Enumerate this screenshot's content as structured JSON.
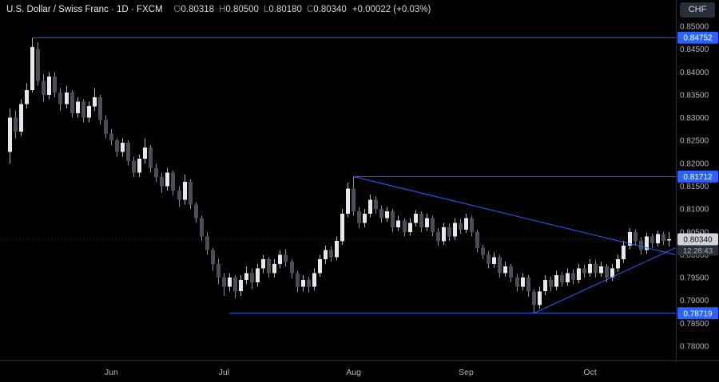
{
  "header": {
    "symbol_title": "U.S. Dollar / Swiss Franc · 1D · FXCM",
    "ohlc": {
      "o_label": "O",
      "o": "0.80318",
      "h_label": "H",
      "h": "0.80500",
      "l_label": "L",
      "l": "0.80180",
      "c_label": "C",
      "c": "0.80340",
      "change": "+0.00022 (+0.03%)"
    },
    "currency_button": "CHF"
  },
  "price_axis": {
    "min": 0.78,
    "max": 0.85,
    "ticks": [
      "0.85000",
      "0.84500",
      "0.84000",
      "0.83500",
      "0.83000",
      "0.82500",
      "0.82000",
      "0.81500",
      "0.81000",
      "0.80500",
      "0.80000",
      "0.79500",
      "0.79000",
      "0.78500",
      "0.78000"
    ]
  },
  "time_axis": {
    "labels": [
      {
        "text": "Jun",
        "index": 18
      },
      {
        "text": "Jul",
        "index": 38
      },
      {
        "text": "Aug",
        "index": 61
      },
      {
        "text": "Sep",
        "index": 81
      },
      {
        "text": "Oct",
        "index": 103
      }
    ]
  },
  "last_price": {
    "value": "0.80340",
    "countdown": "12:28:43",
    "price": 0.8034
  },
  "levels": [
    {
      "price": 0.84752,
      "label": "0.84752",
      "from_index": 4
    },
    {
      "price": 0.81712,
      "label": "0.81712",
      "from_index": 61
    },
    {
      "price": 0.78719,
      "label": "0.78719",
      "from_index": 39
    }
  ],
  "trendlines": [
    {
      "x1_index": 61,
      "p1": 0.81712,
      "x2_index": 118.5,
      "p2": 0.8
    },
    {
      "x1_index": 93,
      "p1": 0.78719,
      "x2_index": 118.5,
      "p2": 0.8015
    }
  ],
  "colors": {
    "background": "#000000",
    "accent": "#2962ff",
    "badge_text": "#ffffff",
    "up": "#e6e8ea",
    "down": "#4a4e57",
    "up_wick": "#b4b6ba",
    "down_wick": "#8c8f96",
    "axis_text": "#b2b5be",
    "separator": "#2a2e39",
    "last_badge_bg": "#d2d4d8",
    "last_badge_text": "#0b0b0b",
    "countdown_bg": "#2a2e39",
    "countdown_text": "#b2b5be",
    "last_price_line": "#9598a1"
  },
  "chart_data": {
    "type": "candlestick",
    "title": "U.S. Dollar / Swiss Franc",
    "symbol": "USDCHF",
    "interval": "1D",
    "exchange": "FXCM",
    "y_range": [
      0.78,
      0.85
    ],
    "x_axis_months": [
      "Jun",
      "Jul",
      "Aug",
      "Sep",
      "Oct"
    ],
    "marked_levels": [
      0.84752,
      0.81712,
      0.78719
    ],
    "candles": [
      [
        0.8225,
        0.832,
        0.82,
        0.83
      ],
      [
        0.83,
        0.8315,
        0.8255,
        0.827
      ],
      [
        0.827,
        0.834,
        0.826,
        0.833
      ],
      [
        0.833,
        0.8375,
        0.832,
        0.836
      ],
      [
        0.836,
        0.8475,
        0.8355,
        0.8455
      ],
      [
        0.845,
        0.8465,
        0.837,
        0.838
      ],
      [
        0.838,
        0.8395,
        0.8335,
        0.835
      ],
      [
        0.835,
        0.84,
        0.834,
        0.839
      ],
      [
        0.839,
        0.84,
        0.8345,
        0.8355
      ],
      [
        0.8355,
        0.8365,
        0.8315,
        0.833
      ],
      [
        0.833,
        0.837,
        0.832,
        0.8355
      ],
      [
        0.8355,
        0.836,
        0.83,
        0.831
      ],
      [
        0.831,
        0.8345,
        0.83,
        0.8335
      ],
      [
        0.8335,
        0.834,
        0.829,
        0.83
      ],
      [
        0.83,
        0.8335,
        0.829,
        0.8325
      ],
      [
        0.8325,
        0.8365,
        0.8315,
        0.8345
      ],
      [
        0.8345,
        0.835,
        0.8285,
        0.8295
      ],
      [
        0.8295,
        0.8305,
        0.8255,
        0.8265
      ],
      [
        0.8265,
        0.8275,
        0.824,
        0.825
      ],
      [
        0.825,
        0.8255,
        0.8215,
        0.8225
      ],
      [
        0.8225,
        0.8255,
        0.8215,
        0.8245
      ],
      [
        0.8245,
        0.825,
        0.8195,
        0.8205
      ],
      [
        0.8205,
        0.8215,
        0.817,
        0.818
      ],
      [
        0.818,
        0.822,
        0.817,
        0.821
      ],
      [
        0.821,
        0.8255,
        0.82,
        0.8235
      ],
      [
        0.8235,
        0.824,
        0.818,
        0.819
      ],
      [
        0.819,
        0.82,
        0.816,
        0.817
      ],
      [
        0.817,
        0.818,
        0.8135,
        0.815
      ],
      [
        0.815,
        0.819,
        0.814,
        0.818
      ],
      [
        0.818,
        0.8185,
        0.813,
        0.814
      ],
      [
        0.814,
        0.815,
        0.8105,
        0.812
      ],
      [
        0.812,
        0.8175,
        0.811,
        0.816
      ],
      [
        0.816,
        0.8165,
        0.81,
        0.811
      ],
      [
        0.811,
        0.8115,
        0.807,
        0.808
      ],
      [
        0.808,
        0.8085,
        0.803,
        0.804
      ],
      [
        0.804,
        0.805,
        0.8,
        0.801
      ],
      [
        0.801,
        0.8015,
        0.7965,
        0.798
      ],
      [
        0.798,
        0.799,
        0.7935,
        0.795
      ],
      [
        0.795,
        0.796,
        0.791,
        0.793
      ],
      [
        0.793,
        0.796,
        0.792,
        0.795
      ],
      [
        0.795,
        0.7955,
        0.7905,
        0.792
      ],
      [
        0.792,
        0.7955,
        0.791,
        0.7945
      ],
      [
        0.7945,
        0.7975,
        0.7935,
        0.796
      ],
      [
        0.796,
        0.797,
        0.7925,
        0.794
      ],
      [
        0.794,
        0.798,
        0.793,
        0.797
      ],
      [
        0.797,
        0.8,
        0.796,
        0.799
      ],
      [
        0.799,
        0.7995,
        0.795,
        0.796
      ],
      [
        0.796,
        0.799,
        0.795,
        0.798
      ],
      [
        0.798,
        0.801,
        0.797,
        0.8
      ],
      [
        0.8,
        0.8012,
        0.7975,
        0.7985
      ],
      [
        0.7985,
        0.799,
        0.7948,
        0.796
      ],
      [
        0.796,
        0.7965,
        0.7918,
        0.793
      ],
      [
        0.793,
        0.7955,
        0.792,
        0.7945
      ],
      [
        0.7945,
        0.7952,
        0.7918,
        0.793
      ],
      [
        0.793,
        0.797,
        0.7922,
        0.796
      ],
      [
        0.796,
        0.8,
        0.7952,
        0.799
      ],
      [
        0.799,
        0.802,
        0.798,
        0.801
      ],
      [
        0.801,
        0.8018,
        0.7985,
        0.7995
      ],
      [
        0.7995,
        0.804,
        0.7988,
        0.803
      ],
      [
        0.803,
        0.81,
        0.8022,
        0.809
      ],
      [
        0.809,
        0.8158,
        0.8082,
        0.8145
      ],
      [
        0.8145,
        0.8171,
        0.8085,
        0.8095
      ],
      [
        0.8095,
        0.8105,
        0.8058,
        0.807
      ],
      [
        0.807,
        0.81,
        0.806,
        0.809
      ],
      [
        0.809,
        0.8132,
        0.8082,
        0.812
      ],
      [
        0.812,
        0.8128,
        0.809,
        0.81
      ],
      [
        0.81,
        0.8108,
        0.807,
        0.808
      ],
      [
        0.808,
        0.8105,
        0.8072,
        0.8095
      ],
      [
        0.8095,
        0.81,
        0.805,
        0.806
      ],
      [
        0.806,
        0.8085,
        0.8052,
        0.8075
      ],
      [
        0.8075,
        0.808,
        0.804,
        0.805
      ],
      [
        0.805,
        0.808,
        0.8042,
        0.807
      ],
      [
        0.807,
        0.8098,
        0.8062,
        0.809
      ],
      [
        0.809,
        0.8095,
        0.805,
        0.806
      ],
      [
        0.806,
        0.809,
        0.8052,
        0.808
      ],
      [
        0.808,
        0.8085,
        0.804,
        0.805
      ],
      [
        0.805,
        0.8058,
        0.802,
        0.803
      ],
      [
        0.803,
        0.807,
        0.8022,
        0.806
      ],
      [
        0.806,
        0.8068,
        0.803,
        0.804
      ],
      [
        0.804,
        0.808,
        0.8032,
        0.807
      ],
      [
        0.807,
        0.8078,
        0.8045,
        0.8055
      ],
      [
        0.8055,
        0.809,
        0.8048,
        0.808
      ],
      [
        0.808,
        0.8085,
        0.804,
        0.805
      ],
      [
        0.805,
        0.8055,
        0.8005,
        0.8015
      ],
      [
        0.8015,
        0.8022,
        0.799,
        0.8
      ],
      [
        0.8,
        0.8008,
        0.797,
        0.798
      ],
      [
        0.798,
        0.8005,
        0.7972,
        0.7995
      ],
      [
        0.7995,
        0.8,
        0.795,
        0.796
      ],
      [
        0.796,
        0.7985,
        0.7952,
        0.7975
      ],
      [
        0.7975,
        0.798,
        0.794,
        0.795
      ],
      [
        0.795,
        0.7958,
        0.792,
        0.793
      ],
      [
        0.793,
        0.796,
        0.7922,
        0.795
      ],
      [
        0.795,
        0.7955,
        0.7908,
        0.792
      ],
      [
        0.792,
        0.7925,
        0.7872,
        0.789
      ],
      [
        0.789,
        0.793,
        0.7882,
        0.792
      ],
      [
        0.792,
        0.7955,
        0.7912,
        0.7945
      ],
      [
        0.7945,
        0.7952,
        0.792,
        0.793
      ],
      [
        0.793,
        0.7965,
        0.7922,
        0.7955
      ],
      [
        0.7955,
        0.7962,
        0.793,
        0.794
      ],
      [
        0.794,
        0.797,
        0.7932,
        0.796
      ],
      [
        0.796,
        0.7968,
        0.7935,
        0.7945
      ],
      [
        0.7945,
        0.798,
        0.7938,
        0.797
      ],
      [
        0.797,
        0.7978,
        0.795,
        0.796
      ],
      [
        0.796,
        0.799,
        0.7952,
        0.798
      ],
      [
        0.798,
        0.7988,
        0.795,
        0.796
      ],
      [
        0.796,
        0.7985,
        0.7952,
        0.7975
      ],
      [
        0.7975,
        0.798,
        0.794,
        0.795
      ],
      [
        0.795,
        0.798,
        0.7942,
        0.797
      ],
      [
        0.797,
        0.8,
        0.7962,
        0.799
      ],
      [
        0.799,
        0.803,
        0.7982,
        0.802
      ],
      [
        0.802,
        0.8058,
        0.8012,
        0.805
      ],
      [
        0.805,
        0.8056,
        0.802,
        0.803
      ],
      [
        0.803,
        0.8038,
        0.8,
        0.801
      ],
      [
        0.801,
        0.8048,
        0.8002,
        0.804
      ],
      [
        0.804,
        0.8046,
        0.8015,
        0.8025
      ],
      [
        0.8025,
        0.8052,
        0.8018,
        0.8045
      ],
      [
        0.8045,
        0.805,
        0.8022,
        0.803
      ],
      [
        0.80318,
        0.805,
        0.8018,
        0.8034
      ]
    ]
  }
}
